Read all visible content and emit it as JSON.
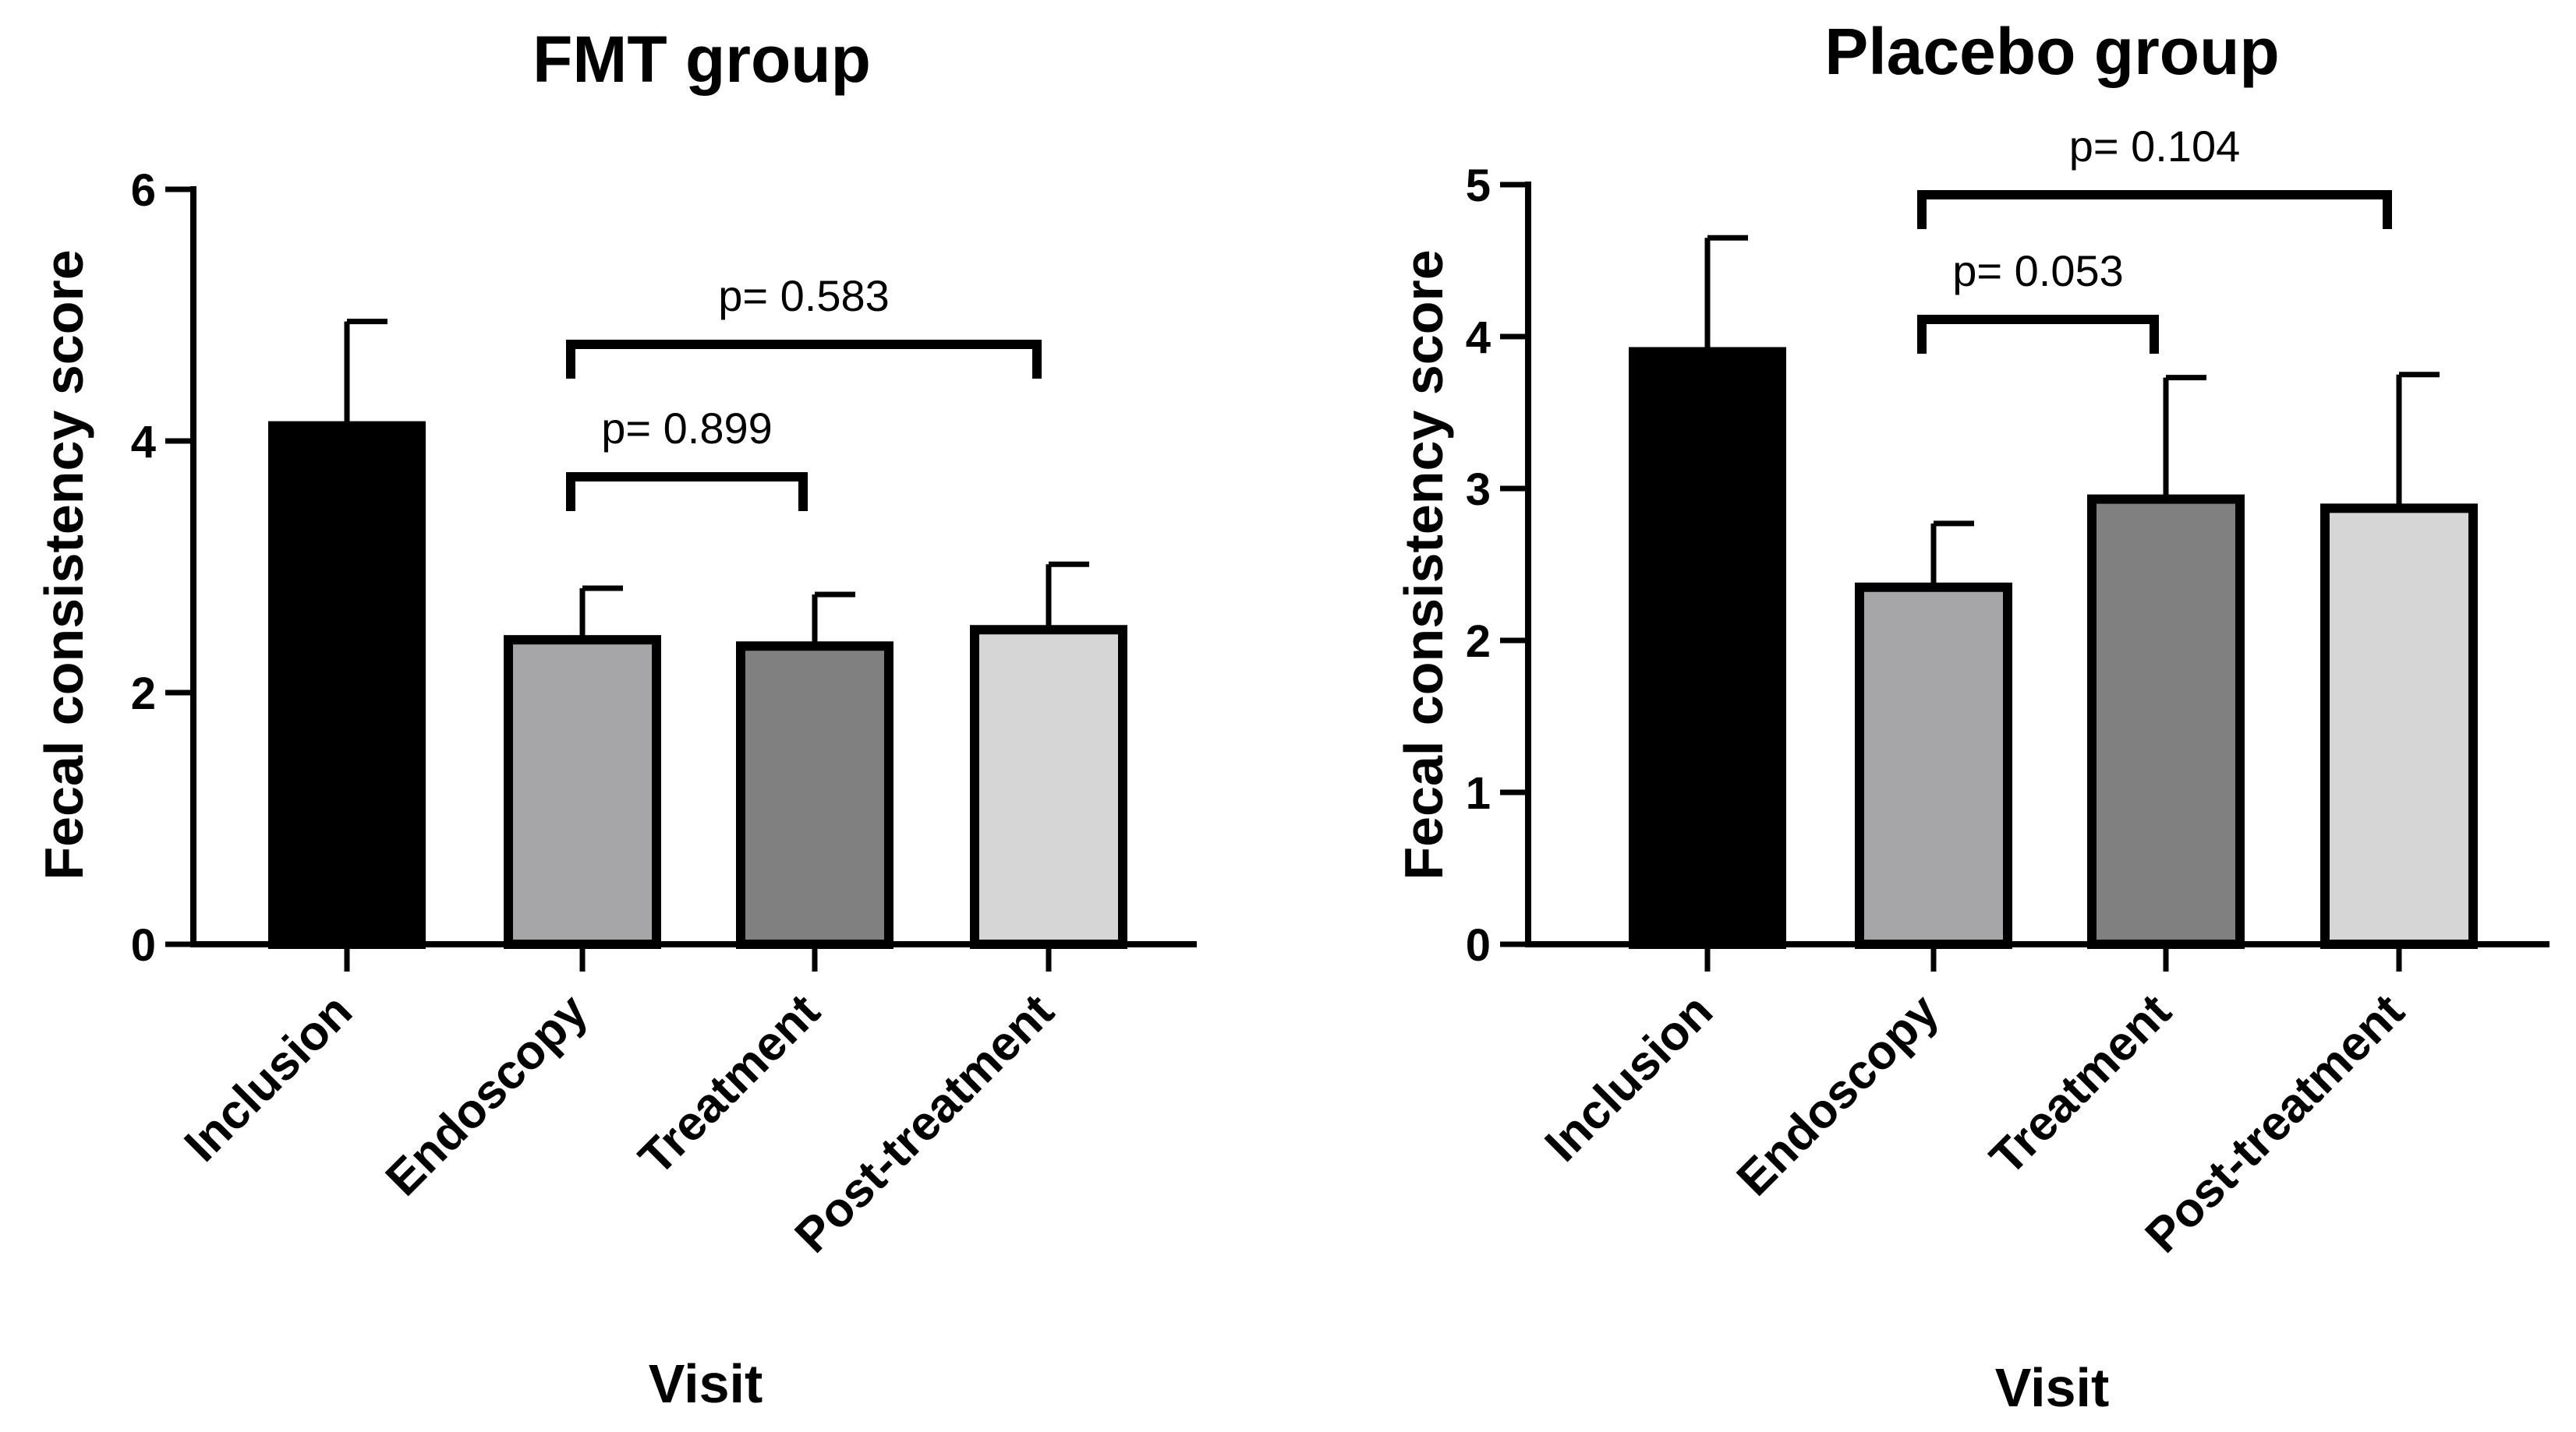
{
  "chart_data": [
    {
      "type": "bar",
      "title": "FMT group",
      "xlabel": "Visit",
      "ylabel": "Fecal consistency score",
      "ylim": [
        0,
        6
      ],
      "yticks": [
        0,
        2,
        4,
        6
      ],
      "categories": [
        "Inclusion",
        "Endoscopy",
        "Treatment",
        "Post-treatment"
      ],
      "values": [
        4.12,
        2.42,
        2.37,
        2.5
      ],
      "errors": [
        0.83,
        0.41,
        0.41,
        0.52
      ],
      "colors": [
        "#000000",
        "#a6a6a8",
        "#808080",
        "#d6d6d6"
      ],
      "comparisons": [
        {
          "from": 1,
          "to": 3,
          "label": "p= 0.583"
        },
        {
          "from": 1,
          "to": 2,
          "label": "p= 0.899"
        }
      ]
    },
    {
      "type": "bar",
      "title": "Placebo group",
      "xlabel": "Visit",
      "ylabel": "Fecal consistency score",
      "ylim": [
        0,
        5
      ],
      "yticks": [
        0,
        1,
        2,
        3,
        4,
        5
      ],
      "categories": [
        "Inclusion",
        "Endoscopy",
        "Treatment",
        "Post-treatment"
      ],
      "values": [
        3.9,
        2.35,
        2.93,
        2.87
      ],
      "errors": [
        0.75,
        0.42,
        0.8,
        0.88
      ],
      "colors": [
        "#000000",
        "#a6a6a8",
        "#808080",
        "#d6d6d6"
      ],
      "comparisons": [
        {
          "from": 1,
          "to": 3,
          "label": "p= 0.104"
        },
        {
          "from": 1,
          "to": 2,
          "label": "p= 0.053"
        }
      ]
    }
  ]
}
